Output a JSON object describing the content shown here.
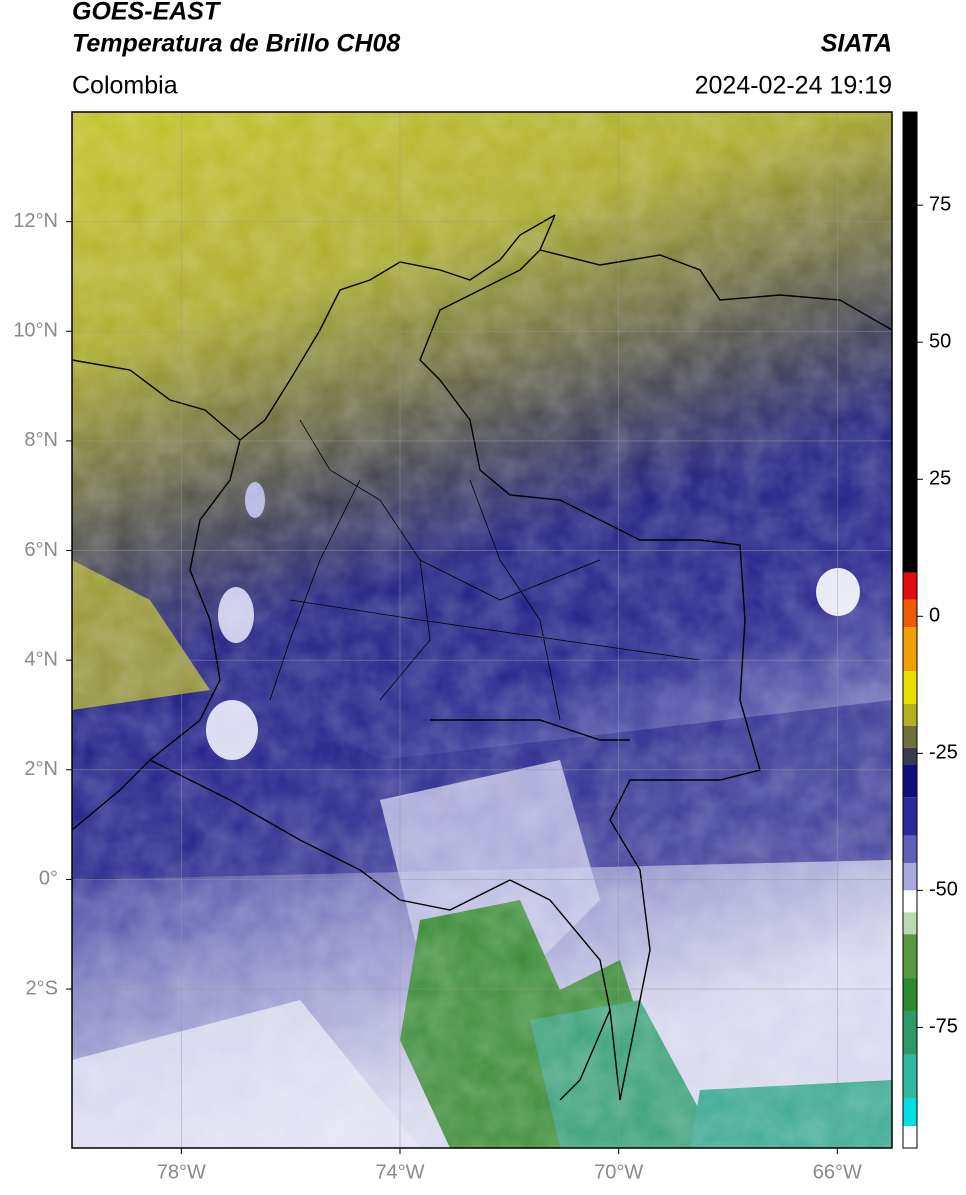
{
  "header": {
    "title": "GOES-EAST",
    "subtitle": "Temperatura de Brillo CH08",
    "source": "SIATA",
    "region": "Colombia",
    "datetime": "2024-02-24 19:19"
  },
  "map": {
    "xlim": [
      -80,
      -65
    ],
    "ylim": [
      -4.9,
      14
    ],
    "xticks": [
      {
        "value": -78,
        "label": "78°W"
      },
      {
        "value": -74,
        "label": "74°W"
      },
      {
        "value": -70,
        "label": "70°W"
      },
      {
        "value": -66,
        "label": "66°W"
      }
    ],
    "yticks": [
      {
        "value": 12,
        "label": "12°N"
      },
      {
        "value": 10,
        "label": "10°N"
      },
      {
        "value": 8,
        "label": "8°N"
      },
      {
        "value": 6,
        "label": "6°N"
      },
      {
        "value": 4,
        "label": "4°N"
      },
      {
        "value": 2,
        "label": "2°N"
      },
      {
        "value": 0,
        "label": "0°"
      },
      {
        "value": -2,
        "label": "2°S"
      }
    ],
    "grid": true
  },
  "colorbar": {
    "clim": [
      -97,
      92
    ],
    "ticks": [
      75,
      50,
      25,
      0,
      -25,
      -50,
      -75
    ],
    "colormap": [
      {
        "value": 92,
        "color": "#000000"
      },
      {
        "value": 8,
        "color": "#e01010"
      },
      {
        "value": 3,
        "color": "#f05a00"
      },
      {
        "value": -2,
        "color": "#f0a000"
      },
      {
        "value": -10,
        "color": "#e8e000"
      },
      {
        "value": -16,
        "color": "#b0b020"
      },
      {
        "value": -20,
        "color": "#70703a"
      },
      {
        "value": -24,
        "color": "#3a3a4a"
      },
      {
        "value": -27,
        "color": "#10107a"
      },
      {
        "value": -33,
        "color": "#2a2a98"
      },
      {
        "value": -40,
        "color": "#6060b8"
      },
      {
        "value": -45,
        "color": "#a8a8da"
      },
      {
        "value": -50,
        "color": "#ffffff"
      },
      {
        "value": -54,
        "color": "#b8dcb0"
      },
      {
        "value": -58,
        "color": "#589a40"
      },
      {
        "value": -66,
        "color": "#2e8a2e"
      },
      {
        "value": -72,
        "color": "#2e9a6a"
      },
      {
        "value": -80,
        "color": "#30b8a0"
      },
      {
        "value": -88,
        "color": "#00e0e0"
      },
      {
        "value": -93,
        "color": "#ffffff"
      }
    ]
  }
}
